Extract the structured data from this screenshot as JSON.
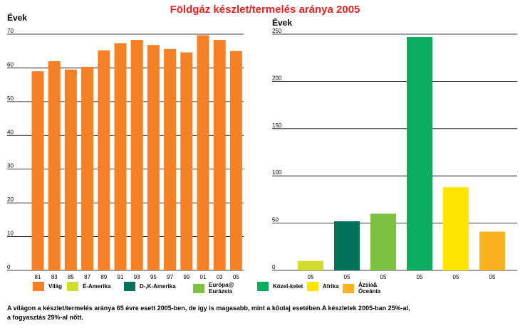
{
  "title": "Földgáz készlet/termelés aránya 2005",
  "chart_data": [
    {
      "type": "bar",
      "ylabel": "Évek",
      "xlabel": "",
      "ylim": [
        0,
        70
      ],
      "yticks": [
        "0",
        "10",
        "20",
        "30",
        "40",
        "50",
        "60",
        "70"
      ],
      "categories": [
        "81",
        "83",
        "85",
        "87",
        "89",
        "91",
        "93",
        "95",
        "97",
        "99",
        "01",
        "03",
        "05"
      ],
      "series": [
        {
          "name": "Világ",
          "color": "#f58025",
          "values": [
            59,
            62,
            59.5,
            60.3,
            65.2,
            67.3,
            68.3,
            66.8,
            65.6,
            64.6,
            69.7,
            68.3,
            65
          ]
        }
      ],
      "grid": true
    },
    {
      "type": "bar",
      "ylabel": "Évek",
      "xlabel": "",
      "ylim": [
        0,
        250
      ],
      "yticks": [
        "0",
        "50",
        "100",
        "150",
        "200",
        "250"
      ],
      "categories": [
        "05",
        "05",
        "05",
        "05",
        "05",
        "05"
      ],
      "values": [
        10,
        52,
        60,
        247,
        88,
        41
      ],
      "colors": [
        "#d2dc2d",
        "#00735a",
        "#7dc142",
        "#0aad5e",
        "#ffe500",
        "#fbb220"
      ],
      "grid": true
    }
  ],
  "legend": [
    {
      "label": "Világ",
      "color": "#f58025"
    },
    {
      "label": "É-Amerika",
      "color": "#d2dc2d"
    },
    {
      "label": "D-,K-Amerika",
      "color": "#00735a"
    },
    {
      "label": "Európa@\nEurázsia",
      "color": "#7dc142"
    },
    {
      "label": "Közel-kelet",
      "color": "#0aad5e"
    },
    {
      "label": "Afrika",
      "color": "#ffe500"
    },
    {
      "label": "Ázsia&\nÓceánia",
      "color": "#fbb220"
    }
  ],
  "caption": "A világon a készlet/termelés aránya 65 évre esett 2005-ben, de így is magasabb, mint a kőolaj esetében.A készletek 2005-ban 25%-al,\n a fogyasztás 29%-al nőtt."
}
